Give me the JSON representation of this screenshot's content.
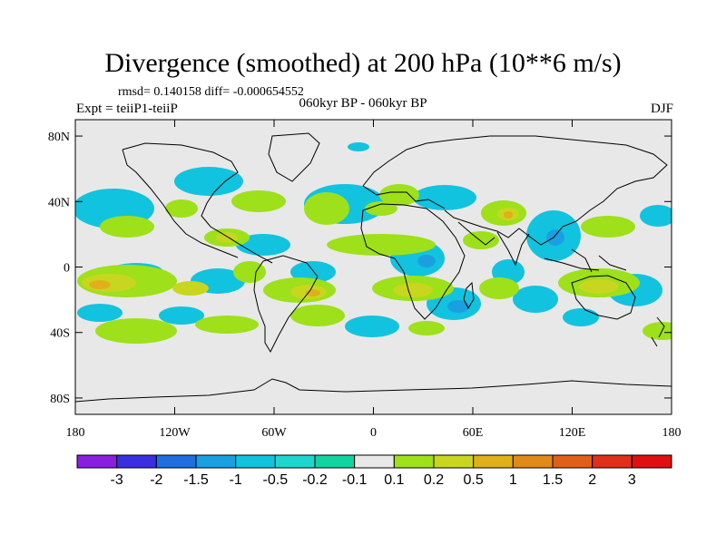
{
  "title": "Divergence (smoothed) at 200 hPa (10**6 m/s)",
  "stats": "rmsd= 0.140158 diff= -0.000654552",
  "experiment": "Expt = teiiP1-teiiP",
  "period": "060kyr BP - 060kyr BP",
  "season": "DJF",
  "x_ticks": [
    "180",
    "120W",
    "60W",
    "0",
    "60E",
    "120E",
    "180"
  ],
  "y_ticks": [
    "80N",
    "40N",
    "0",
    "40S",
    "80S"
  ],
  "colorbar": {
    "labels": [
      "-3",
      "-2",
      "-1.5",
      "-1",
      "-0.5",
      "-0.2",
      "-0.1",
      "0.1",
      "0.2",
      "0.5",
      "1",
      "1.5",
      "2",
      "3"
    ],
    "colors": [
      "#8a1fe0",
      "#3a2ee0",
      "#1f6fe0",
      "#1aa0e0",
      "#12c3df",
      "#1fd6cf",
      "#12d4a0",
      "#e8e8e8",
      "#9ee01a",
      "#c8d61f",
      "#e0b01a",
      "#e08a1a",
      "#e0601a",
      "#e0301a",
      "#e01010"
    ]
  },
  "map": {
    "background_color": "#e8e8e8",
    "negative_colors": [
      "#12c3df",
      "#1aa0e0"
    ],
    "positive_colors": [
      "#9ee01a",
      "#c8d61f",
      "#e0b01a"
    ]
  }
}
